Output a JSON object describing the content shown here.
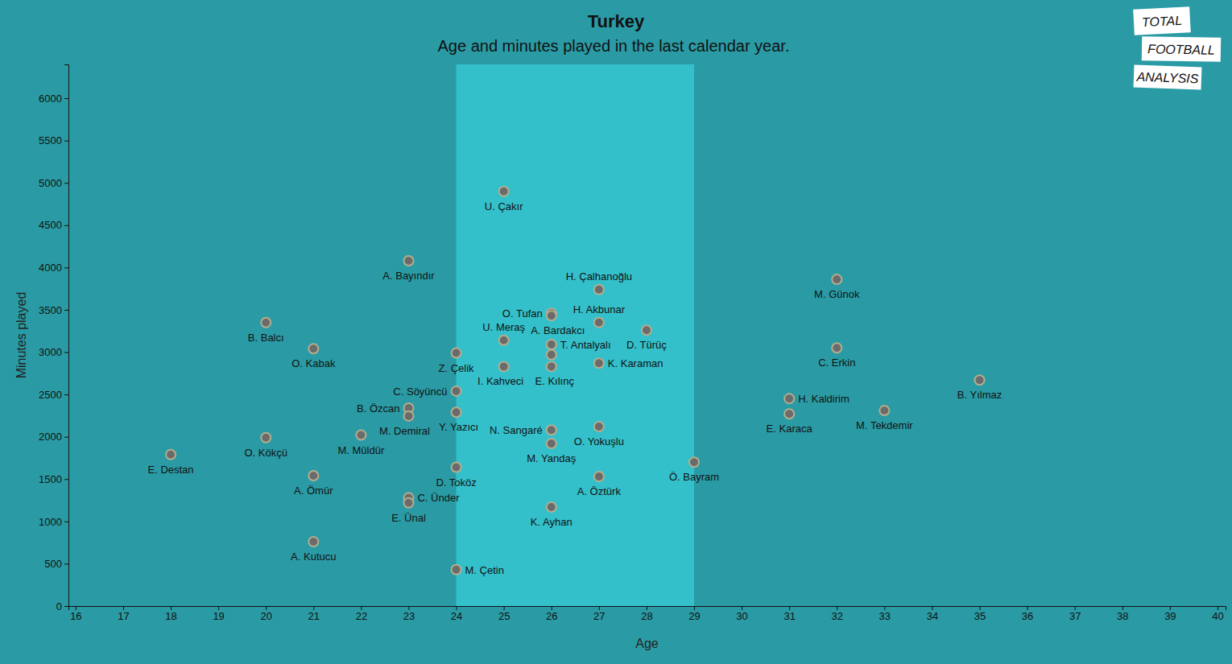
{
  "chart_data": {
    "type": "scatter",
    "title": "Turkey",
    "subtitle": "Age and minutes played in the last calendar year.",
    "x_label": "Age",
    "y_label": "Minutes played",
    "logo": [
      "TOTAL",
      "FOOTBALL",
      "ANALYSIS"
    ],
    "color": "#6b6b6b",
    "marker": "circle",
    "highlight_range": [
      24,
      29
    ],
    "xlim": [
      15.85,
      40.17
    ],
    "xticks": [
      16,
      17,
      18,
      19,
      20,
      21,
      22,
      23,
      24,
      25,
      26,
      27,
      28,
      29,
      30,
      31,
      32,
      33,
      34,
      35,
      36,
      37,
      38,
      39,
      40
    ],
    "ylim": [
      0,
      6400
    ],
    "yticks": [
      0,
      500,
      1000,
      1500,
      2000,
      2500,
      3000,
      3500,
      4000,
      4500,
      5000,
      5500,
      6000
    ],
    "point_labels": [
      "E. Destan",
      "O. Kökçü",
      "B. Balcı",
      "O. Kabak",
      "A. Ömür",
      "A. Kutucu",
      "M. Müldür",
      "A. Bayındır",
      "B. Özcan",
      "M. Demiral",
      "C. Ünder",
      "E. Ünal",
      "Z. Çelik",
      "C. Söyüncü",
      "Y. Yazıcı",
      "D. Toköz",
      "M. Çetin",
      "U. Çakır",
      "U. Meraş",
      "I. Kahveci",
      "O. Tufan",
      "A. Bardakcı",
      "T. Antalyalı",
      null,
      "E. Kılınç",
      "N. Sangaré",
      "M. Yandaş",
      "K. Ayhan",
      "H. Çalhanoğlu",
      "H. Akbunar",
      "K. Karaman",
      "O. Yokuşlu",
      "A. Öztürk",
      "D. Türüç",
      "Ö. Bayram",
      "H. Kaldirim",
      "E. Karaca",
      "M. Günok",
      "C. Erkin",
      "M. Tekdemir",
      "B. Yılmaz"
    ],
    "x": [
      18,
      20,
      20,
      21,
      21,
      21,
      22,
      23,
      23,
      23,
      23,
      23,
      24,
      24,
      24,
      24,
      24,
      25,
      25,
      25,
      26,
      26,
      26,
      26,
      26,
      26,
      26,
      26,
      27,
      27,
      27,
      27,
      27,
      28,
      29,
      31,
      31,
      32,
      32,
      33,
      35
    ],
    "values": [
      1790,
      1990,
      3350,
      3040,
      1540,
      760,
      2020,
      4080,
      2340,
      2245,
      1280,
      1220,
      2990,
      2540,
      2290,
      1640,
      430,
      4900,
      3140,
      2830,
      3460,
      3430,
      3090,
      2970,
      2830,
      2080,
      1920,
      1170,
      3740,
      3350,
      2870,
      2120,
      1530,
      3260,
      1700,
      2450,
      2270,
      3860,
      3050,
      2310,
      2670
    ]
  }
}
